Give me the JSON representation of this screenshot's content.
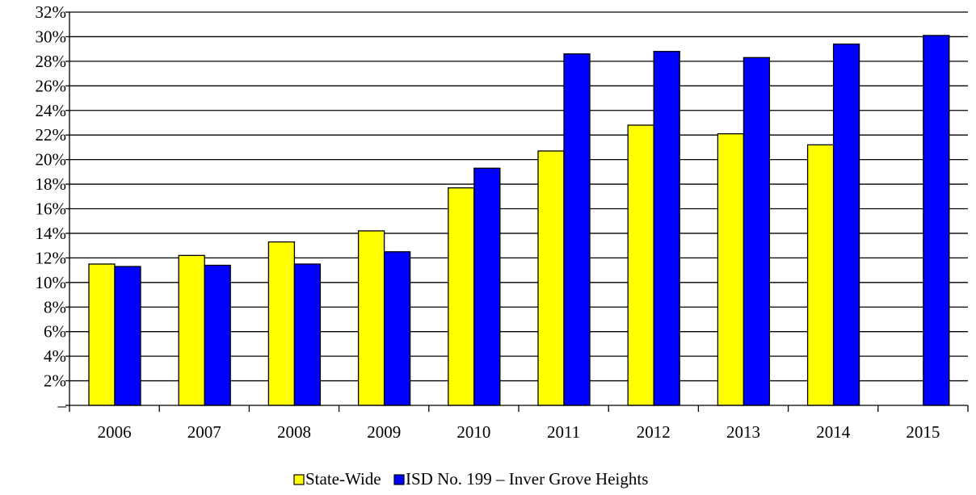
{
  "chart_data": {
    "type": "bar",
    "title": "",
    "xlabel": "",
    "ylabel": "",
    "categories": [
      "2006",
      "2007",
      "2008",
      "2009",
      "2010",
      "2011",
      "2012",
      "2013",
      "2014",
      "2015"
    ],
    "series": [
      {
        "name": "State-Wide",
        "color": "#FFFF00",
        "values": [
          11.5,
          12.2,
          13.3,
          14.2,
          17.7,
          20.7,
          22.8,
          22.1,
          21.2,
          null
        ]
      },
      {
        "name": "ISD No. 199 – Inver Grove Heights",
        "color": "#0000FF",
        "values": [
          11.3,
          11.4,
          11.5,
          12.5,
          19.3,
          28.6,
          28.8,
          28.3,
          29.4,
          30.1
        ]
      }
    ],
    "ylim": [
      0,
      32
    ],
    "y_ticks": [
      "–",
      "2%",
      "4%",
      "6%",
      "8%",
      "10%",
      "12%",
      "14%",
      "16%",
      "18%",
      "20%",
      "22%",
      "24%",
      "26%",
      "28%",
      "30%",
      "32%"
    ],
    "grid": true,
    "legend_position": "bottom-center"
  }
}
